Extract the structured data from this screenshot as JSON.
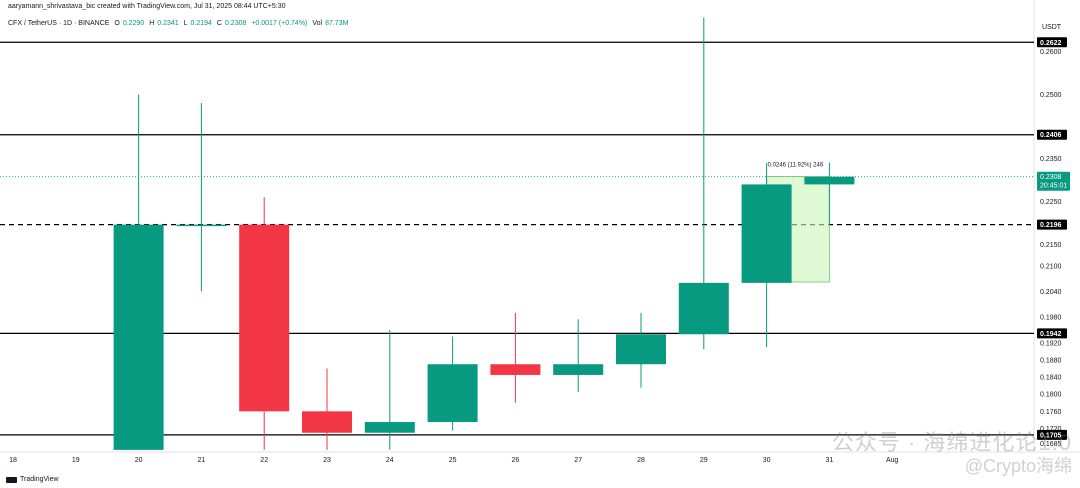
{
  "header": {
    "credit": "aaryamann_shrivastava_bic created with TradingView.com, Jul 31, 2025 08:44 UTC+5:30",
    "symbol": "CFX / TetherUS · 1D · BINANCE",
    "o_label": "O",
    "o_val": "0.2290",
    "h_label": "H",
    "h_val": "0.2341",
    "l_label": "L",
    "l_val": "0.2194",
    "c_label": "C",
    "c_val": "0.2308",
    "chg": "+0.0017 (+0.74%)",
    "vol_label": "Vol",
    "vol_val": "87.73M"
  },
  "footer": {
    "brand": "TradingView"
  },
  "watermark": {
    "line1": "公众号 · 海绵进化论1.0",
    "line2": "@Crypto海绵"
  },
  "colors": {
    "up": "#089981",
    "down": "#f23645",
    "measure": "#c8f5b8",
    "line": "#000000"
  },
  "chart_data": {
    "type": "candlestick",
    "currency": "USDT",
    "x_labels": [
      "18",
      "19",
      "20",
      "21",
      "22",
      "23",
      "24",
      "25",
      "26",
      "27",
      "28",
      "29",
      "30",
      "31",
      "Aug"
    ],
    "ylim": [
      0.1665,
      0.2688
    ],
    "y_ticks": [
      "0.2600",
      "0.2500",
      "0.2350",
      "0.2250",
      "0.2150",
      "0.2100",
      "0.2040",
      "0.1980",
      "0.1920",
      "0.1880",
      "0.1840",
      "0.1800",
      "0.1760",
      "0.1720",
      "0.1685"
    ],
    "candles": [
      {
        "day": "20",
        "open": 0.167,
        "high": 0.25,
        "low": 0.167,
        "close": 0.2196
      },
      {
        "day": "21",
        "open": 0.2196,
        "high": 0.248,
        "low": 0.204,
        "close": 0.2196
      },
      {
        "day": "22",
        "open": 0.2196,
        "high": 0.226,
        "low": 0.167,
        "close": 0.176
      },
      {
        "day": "23",
        "open": 0.176,
        "high": 0.186,
        "low": 0.167,
        "close": 0.171
      },
      {
        "day": "24",
        "open": 0.171,
        "high": 0.195,
        "low": 0.167,
        "close": 0.1735
      },
      {
        "day": "25",
        "open": 0.1735,
        "high": 0.1935,
        "low": 0.1715,
        "close": 0.187
      },
      {
        "day": "26",
        "open": 0.187,
        "high": 0.199,
        "low": 0.178,
        "close": 0.1845
      },
      {
        "day": "27",
        "open": 0.1845,
        "high": 0.1975,
        "low": 0.1805,
        "close": 0.187
      },
      {
        "day": "28",
        "open": 0.187,
        "high": 0.199,
        "low": 0.1815,
        "close": 0.194
      },
      {
        "day": "29",
        "open": 0.194,
        "high": 0.268,
        "low": 0.1905,
        "close": 0.206
      },
      {
        "day": "30",
        "open": 0.206,
        "high": 0.234,
        "low": 0.191,
        "close": 0.229
      },
      {
        "day": "31",
        "open": 0.229,
        "high": 0.2341,
        "low": 0.2194,
        "close": 0.2308
      }
    ],
    "levels": [
      {
        "price": 0.2622,
        "label": "0.2622",
        "style": "solid"
      },
      {
        "price": 0.2406,
        "label": "0.2406",
        "style": "solid"
      },
      {
        "price": 0.2196,
        "label": "0.2196",
        "style": "dashed"
      },
      {
        "price": 0.1942,
        "label": "0.1942",
        "style": "solid"
      },
      {
        "price": 0.1705,
        "label": "0.1705",
        "style": "solid"
      }
    ],
    "current_price": {
      "price": 0.2308,
      "label": "0.2308",
      "countdown": "20:45:01"
    },
    "measure": {
      "from_day": "30",
      "to_day": "31",
      "low": 0.2062,
      "high": 0.2308,
      "label": "0.0246 (11.92%) 246"
    }
  }
}
